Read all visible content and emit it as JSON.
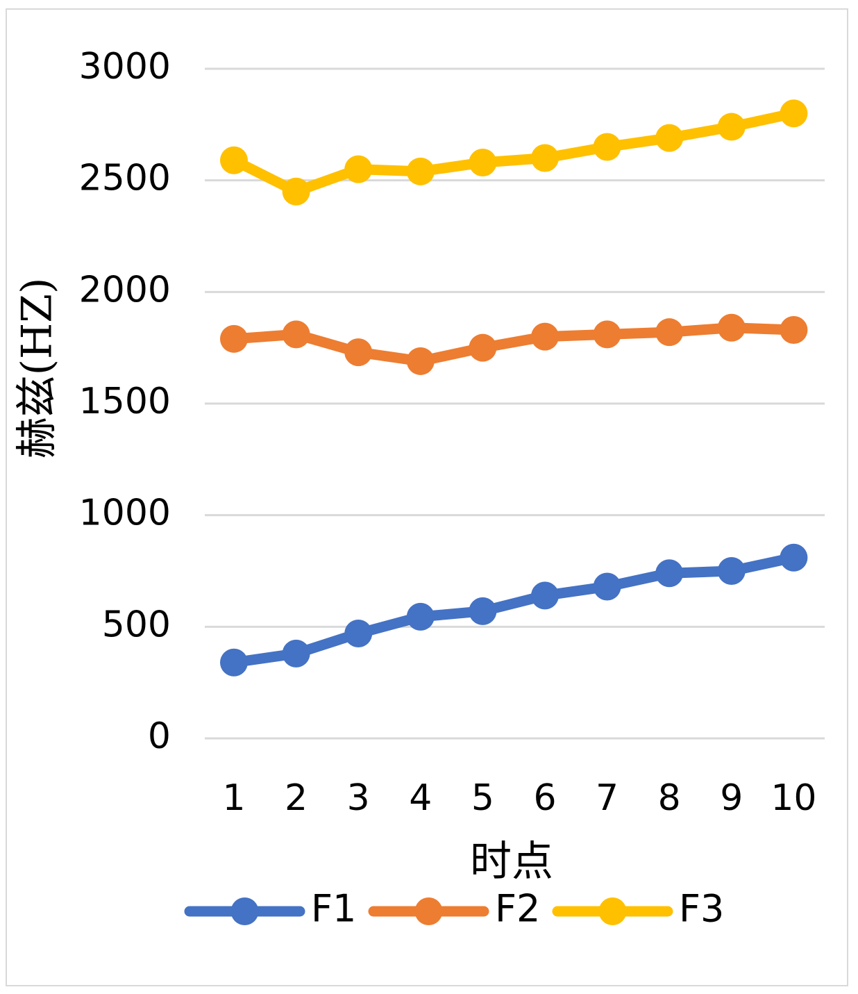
{
  "chart_data": {
    "type": "line",
    "title": "",
    "xlabel": "时点",
    "ylabel": "赫兹(HZ)",
    "categories": [
      "1",
      "2",
      "3",
      "4",
      "5",
      "6",
      "7",
      "8",
      "9",
      "10"
    ],
    "ylim": [
      0,
      3000
    ],
    "yticks": [
      "0",
      "500",
      "1000",
      "1500",
      "2000",
      "2500",
      "3000"
    ],
    "grid": true,
    "legend_position": "bottom",
    "series": [
      {
        "name": "F1",
        "color": "#4472C4",
        "values": [
          340,
          380,
          470,
          545,
          570,
          640,
          680,
          740,
          750,
          810
        ]
      },
      {
        "name": "F2",
        "color": "#ED7D31",
        "values": [
          1790,
          1810,
          1730,
          1690,
          1750,
          1800,
          1810,
          1820,
          1840,
          1830
        ]
      },
      {
        "name": "F3",
        "color": "#FFC000",
        "values": [
          2590,
          2450,
          2550,
          2540,
          2580,
          2600,
          2650,
          2690,
          2740,
          2800
        ]
      }
    ]
  }
}
